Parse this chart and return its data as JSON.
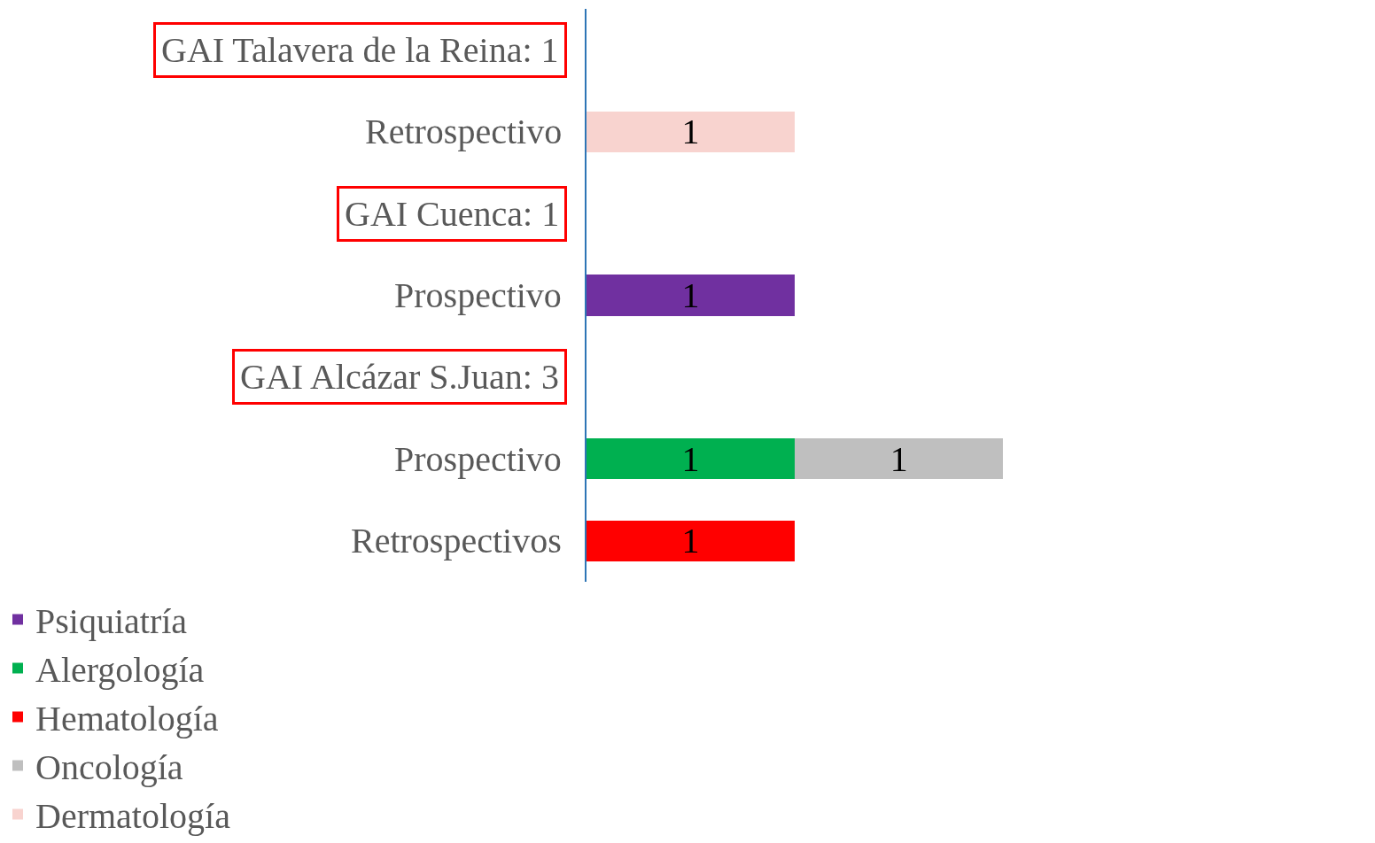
{
  "chart_data": {
    "type": "bar",
    "orientation": "horizontal",
    "stacked": true,
    "data_labels": true,
    "legend": "bottom",
    "categories": [
      "GAI Talavera de la Reina: 1",
      "Retrospectivo",
      "GAI Cuenca: 1",
      "Prospectivo",
      "GAI Alcázar S.Juan: 3",
      "Prospectivo",
      "Retrospectivos"
    ],
    "series": [
      {
        "name": "Psiquiatría",
        "color": "#7030a0",
        "values": [
          null,
          null,
          null,
          1,
          null,
          null,
          null
        ]
      },
      {
        "name": "Alergología",
        "color": "#00b050",
        "values": [
          null,
          null,
          null,
          null,
          null,
          1,
          null
        ]
      },
      {
        "name": "Hematología",
        "color": "#ff0000",
        "values": [
          null,
          null,
          null,
          null,
          null,
          null,
          1
        ]
      },
      {
        "name": "Oncología",
        "color": "#bfbfbf",
        "values": [
          null,
          null,
          null,
          null,
          null,
          1,
          null
        ]
      },
      {
        "name": "Dermatología",
        "color": "#f8d3cf",
        "values": [
          null,
          1,
          null,
          null,
          null,
          null,
          null
        ]
      }
    ]
  }
}
